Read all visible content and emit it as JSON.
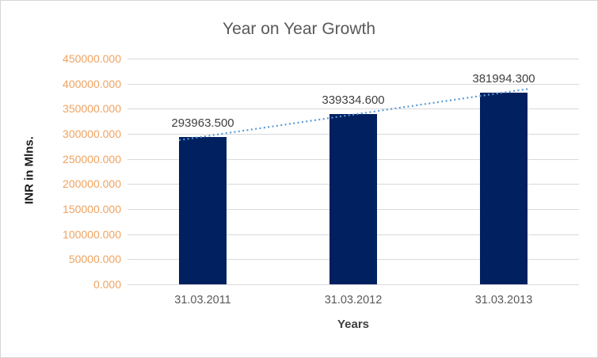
{
  "chart_data": {
    "type": "bar",
    "title": "Year on Year Growth",
    "xlabel": "Years",
    "ylabel": "INR in Mlns.",
    "categories": [
      "31.03.2011",
      "31.03.2012",
      "31.03.2013"
    ],
    "series": [
      {
        "name": "INR in Mlns.",
        "values": [
          293963.5,
          339334.6,
          381994.3
        ]
      }
    ],
    "data_labels": [
      "293963.500",
      "339334.600",
      "381994.300"
    ],
    "ylim": [
      0,
      450000
    ],
    "ytick_step": 50000,
    "ytick_labels": [
      "0.000",
      "50000.000",
      "100000.000",
      "150000.000",
      "200000.000",
      "250000.000",
      "300000.000",
      "350000.000",
      "400000.000",
      "450000.000"
    ],
    "grid": true,
    "legend": "none",
    "trendline": {
      "type": "linear",
      "style": "dotted"
    }
  },
  "colors": {
    "bar": "#002060",
    "trendline": "#5b9bd5",
    "gridline": "#d9d9d9",
    "title_text": "#595959",
    "ytick_text": "#efa361",
    "xtick_text": "#595959",
    "datalabel_text": "#404040"
  }
}
